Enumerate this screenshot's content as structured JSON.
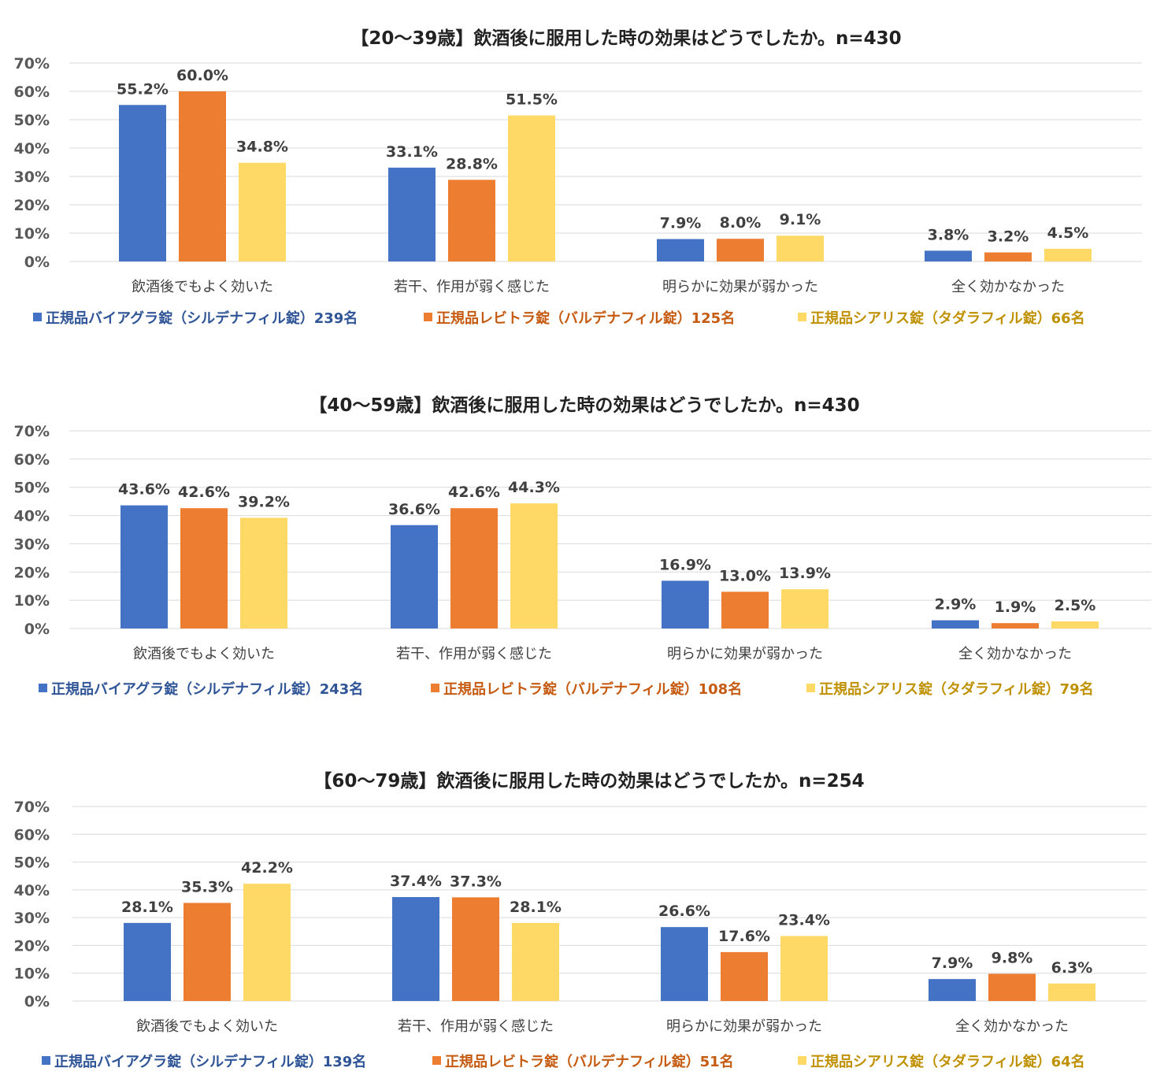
{
  "colors": {
    "viagra": "#4472c4",
    "levitra": "#ed7d31",
    "cialis": "#ffd966",
    "legend_text": [
      "#2f5597",
      "#c55a11",
      "#bf9000"
    ],
    "grid": "#d9d9d9"
  },
  "chart_data": [
    {
      "type": "bar",
      "title": "【20〜39歳】飲酒後に服用した時の効果はどうでしたか。n=430",
      "categories": [
        "飲酒後でもよく効いた",
        "若干、作用が弱く感じた",
        "明らかに効果が弱かった",
        "全く効かなかった"
      ],
      "ylim": [
        0,
        70
      ],
      "yticks": [
        "0%",
        "10%",
        "20%",
        "30%",
        "40%",
        "50%",
        "60%",
        "70%"
      ],
      "grid": true,
      "legend_position": "bottom",
      "series": [
        {
          "name": "正規品バイアグラ錠（シルデナフィル錠）239名",
          "values": [
            55.2,
            33.1,
            7.9,
            3.8
          ],
          "labels": [
            "55.2%",
            "33.1%",
            "7.9%",
            "3.8%"
          ]
        },
        {
          "name": "正規品レビトラ錠（バルデナフィル錠）125名",
          "values": [
            60.0,
            28.8,
            8.0,
            3.2
          ],
          "labels": [
            "60.0%",
            "28.8%",
            "8.0%",
            "3.2%"
          ]
        },
        {
          "name": "正規品シアリス錠（タダラフィル錠）66名",
          "values": [
            34.8,
            51.5,
            9.1,
            4.5
          ],
          "labels": [
            "34.8%",
            "51.5%",
            "9.1%",
            "4.5%"
          ]
        }
      ]
    },
    {
      "type": "bar",
      "title": "【40〜59歳】飲酒後に服用した時の効果はどうでしたか。n=430",
      "categories": [
        "飲酒後でもよく効いた",
        "若干、作用が弱く感じた",
        "明らかに効果が弱かった",
        "全く効かなかった"
      ],
      "ylim": [
        0,
        70
      ],
      "yticks": [
        "0%",
        "10%",
        "20%",
        "30%",
        "40%",
        "50%",
        "60%",
        "70%"
      ],
      "grid": true,
      "legend_position": "bottom",
      "series": [
        {
          "name": "正規品バイアグラ錠（シルデナフィル錠）243名",
          "values": [
            43.6,
            36.6,
            16.9,
            2.9
          ],
          "labels": [
            "43.6%",
            "36.6%",
            "16.9%",
            "2.9%"
          ]
        },
        {
          "name": "正規品レビトラ錠（バルデナフィル錠）108名",
          "values": [
            42.6,
            42.6,
            13.0,
            1.9
          ],
          "labels": [
            "42.6%",
            "42.6%",
            "13.0%",
            "1.9%"
          ]
        },
        {
          "name": "正規品シアリス錠（タダラフィル錠）79名",
          "values": [
            39.2,
            44.3,
            13.9,
            2.5
          ],
          "labels": [
            "39.2%",
            "44.3%",
            "13.9%",
            "2.5%"
          ]
        }
      ]
    },
    {
      "type": "bar",
      "title": "【60〜79歳】飲酒後に服用した時の効果はどうでしたか。n=254",
      "categories": [
        "飲酒後でもよく効いた",
        "若干、作用が弱く感じた",
        "明らかに効果が弱かった",
        "全く効かなかった"
      ],
      "ylim": [
        0,
        70
      ],
      "yticks": [
        "0%",
        "10%",
        "20%",
        "30%",
        "40%",
        "50%",
        "60%",
        "70%"
      ],
      "grid": true,
      "legend_position": "bottom",
      "series": [
        {
          "name": "正規品バイアグラ錠（シルデナフィル錠）139名",
          "values": [
            28.1,
            37.4,
            26.6,
            7.9
          ],
          "labels": [
            "28.1%",
            "37.4%",
            "26.6%",
            "7.9%"
          ]
        },
        {
          "name": "正規品レビトラ錠（バルデナフィル錠）51名",
          "values": [
            35.3,
            37.3,
            17.6,
            9.8
          ],
          "labels": [
            "35.3%",
            "37.3%",
            "17.6%",
            "9.8%"
          ]
        },
        {
          "name": "正規品シアリス錠（タダラフィル錠）64名",
          "values": [
            42.2,
            28.1,
            23.4,
            6.3
          ],
          "labels": [
            "42.2%",
            "28.1%",
            "23.4%",
            "6.3%"
          ]
        }
      ]
    }
  ]
}
